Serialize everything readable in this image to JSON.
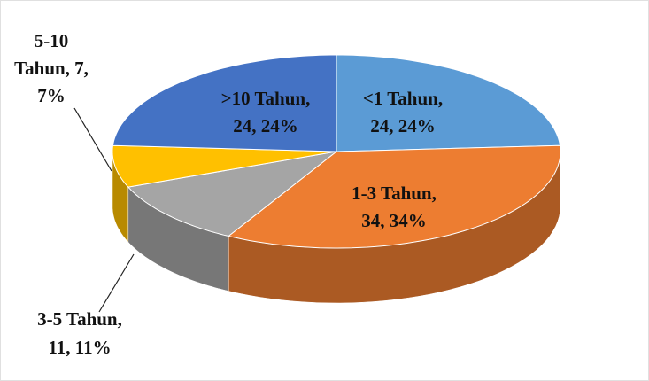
{
  "chart_data": {
    "type": "pie3d",
    "values": [
      24,
      34,
      11,
      7,
      24
    ],
    "value_labels": [
      [
        "<1 Tahun,",
        "24, 24%"
      ],
      [
        "1-3 Tahun,",
        "34, 34%"
      ],
      [
        "3-5 Tahun,",
        "11, 11%"
      ],
      [
        "5-10",
        "Tahun, 7,",
        "7%"
      ],
      [
        ">10 Tahun,",
        "24, 24%"
      ]
    ],
    "colors": [
      "#5b9bd5",
      "#ed7d31",
      "#a5a5a5",
      "#ffc000",
      "#4472c4"
    ]
  }
}
